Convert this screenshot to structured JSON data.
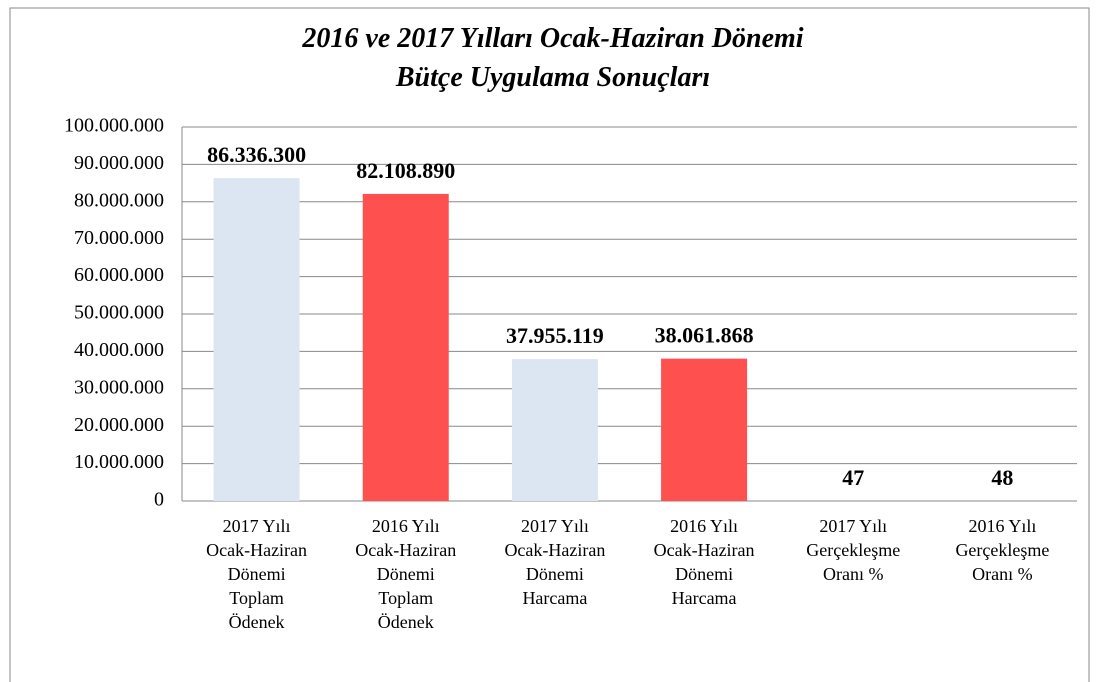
{
  "chart_data": {
    "type": "bar",
    "title": [
      "2016 ve 2017 Yılları Ocak-Haziran Dönemi",
      "Bütçe Uygulama Sonuçları"
    ],
    "categories": [
      [
        "2017 Yılı",
        "Ocak-Haziran",
        "Dönemi",
        "Toplam",
        "Ödenek"
      ],
      [
        "2016 Yılı",
        "Ocak-Haziran",
        "Dönemi",
        "Toplam",
        "Ödenek"
      ],
      [
        "2017 Yılı",
        "Ocak-Haziran",
        "Dönemi",
        "Harcama"
      ],
      [
        "2016 Yılı",
        "Ocak-Haziran",
        "Dönemi",
        "Harcama"
      ],
      [
        "2017 Yılı",
        "Gerçekleşme",
        "Oranı %"
      ],
      [
        "2016 Yılı",
        "Gerçekleşme",
        "Oranı %"
      ]
    ],
    "values": [
      86336300,
      82108890,
      37955119,
      38061868,
      47,
      48
    ],
    "value_labels": [
      "86.336.300",
      "82.108.890",
      "37.955.119",
      "38.061.868",
      "47",
      "48"
    ],
    "colors": [
      "#dce6f2",
      "#ff5050",
      "#dce6f2",
      "#ff5050",
      "#dce6f2",
      "#ff5050"
    ],
    "ylim": [
      0,
      100000000
    ],
    "yticks": [
      0,
      {
        "value": 10000000,
        "label": "10.000.000"
      },
      {
        "value": 20000000,
        "label": "20.000.000"
      },
      {
        "value": 30000000,
        "label": "30.000.000"
      },
      {
        "value": 40000000,
        "label": "40.000.000"
      },
      {
        "value": 50000000,
        "label": "50.000.000"
      },
      {
        "value": 60000000,
        "label": "60.000.000"
      },
      {
        "value": 70000000,
        "label": "70.000.000"
      },
      {
        "value": 80000000,
        "label": "80.000.000"
      },
      {
        "value": 90000000,
        "label": "90.000.000"
      },
      {
        "value": 100000000,
        "label": "100.000.000"
      }
    ],
    "grid": true
  }
}
